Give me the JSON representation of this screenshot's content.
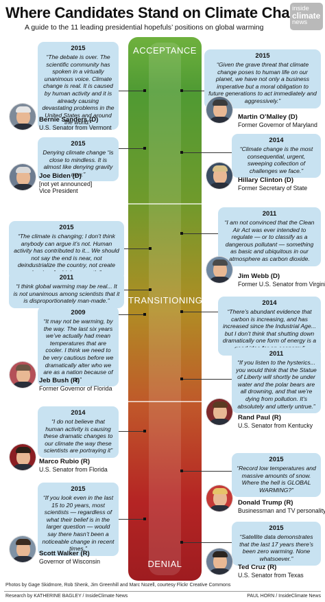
{
  "header": {
    "title": "Where Candidates Stand on Climate Change",
    "subtitle": "A guide to the 11 leading presidential hopefuls’ positions on global warming"
  },
  "logo": {
    "line1": "inside",
    "line2": "climate",
    "line3": "news"
  },
  "scale": {
    "top": "ACCEPTANCE",
    "middle": "TRANSITIONING",
    "bottom": "DENIAL"
  },
  "left": [
    {
      "year": "2015",
      "quote": "“The debate is over. The scientific community has spoken in a virtually unanimous voice. Climate change is real. It is caused by human activity and it is already causing devastating problems in the United States and around the world.”",
      "name": "Bernie Sanders (D)",
      "role": "U.S. Senator from Vermont",
      "role2": ""
    },
    {
      "year": "2015",
      "quote": "Denying climate change “is close to mindless. It is almost like denying gravity now.”",
      "name": "Joe Biden (D)",
      "role": "[not yet announced]",
      "role2": "Vice President"
    },
    {
      "year": "2015",
      "quote": "“The climate is changing; I don’t think anybody can argue it’s not. Human activity has contributed to it... We should not say the end is near, not deindustrialize the country, not create barriers for higher growth.”",
      "name": "",
      "role": "",
      "role2": ""
    },
    {
      "year": "2011",
      "quote": "“I think global warming may be real... It is not unanimous among scientists that it is disproportionately man-made.”",
      "name": "",
      "role": "",
      "role2": ""
    },
    {
      "year": "2009",
      "quote": "“It may not be warming, by the way. The last six years we’ve actually had mean temperatures that are cooler. I think we need to be very cautious before we dramatically alter who we are as a nation because of it.”",
      "name": "Jeb Bush (R)",
      "role": "Former Governor of Florida",
      "role2": ""
    },
    {
      "year": "2014",
      "quote": "“I do not believe that human activity is causing these dramatic changes to our climate the way these scientists are portraying it”",
      "name": "Marco Rubio (R)",
      "role": "U.S. Senator from Florida",
      "role2": ""
    },
    {
      "year": "2015",
      "quote": "“If you look even in the last 15 to 20 years, most scientists — regardless of what their belief is in the larger question — would say there hasn’t been a noticeable change in recent times.”",
      "name": "Scott Walker (R)",
      "role": "Governor of Wisconsin",
      "role2": ""
    }
  ],
  "right": [
    {
      "year": "2015",
      "quote": "“Given the grave threat that climate change poses to human life on our planet, we have not only a business imperative but a moral obligation to future generations to act immediately and aggressively.”",
      "name": "Martin O’Malley (D)",
      "role": "Former Governor of Maryland"
    },
    {
      "year": "2014",
      "quote": "“Climate change is the most consequential, urgent, sweeping collection of challenges we face.”",
      "name": "Hillary Clinton (D)",
      "role": "Former Secretary of State"
    },
    {
      "year": "2011",
      "quote": "“I am not convinced that the Clean Air Act was ever intended to regulate — or to classify as a dangerous pollutant — something as basic and ubiquitous in our atmosphere as carbon dioxide.",
      "name": "Jim Webb (D)",
      "role": "Former U.S. Senator from Virginia"
    },
    {
      "year": "2014",
      "quote": "“There’s abundant evidence that carbon is increasing, and has increased since the Industrial Age... but I don’t think that shutting down dramatically one form of energy is a good idea for an economy”",
      "name": "",
      "role": ""
    },
    {
      "year": "2011",
      "quote": "“If you listen to the hysterics... you would think that the Statue of Liberty will shortly be under water and the polar bears are all drowning, and that we’re dying from pollution. It’s absolutely and utterly untrue.”",
      "name": "Rand Paul (R)",
      "role": "U.S. Senator from Kentucky"
    },
    {
      "year": "2015",
      "quote": "“Record low temperatures and massive amounts of snow. Where the hell is GLOBAL WARMING?”",
      "name": "Donald Trump (R)",
      "role": "Businessman and TV personality"
    },
    {
      "year": "2015",
      "quote": "“Satellite data demonstrates that the last 17 years there’s been zero warming. None whatsoever.”",
      "name": "Ted Cruz (R)",
      "role": "U.S. Senator from Texas"
    }
  ],
  "footer": {
    "photos": "Photos by Gage Skidmore, Rob Shenk, Jim Greenhill and Marc Nozell, courtesy Flickr Creative Commons",
    "research": "Research by KATHERINE BAGLEY / InsideClimate News",
    "credit": "PAUL HORN / InsideClimate News"
  }
}
